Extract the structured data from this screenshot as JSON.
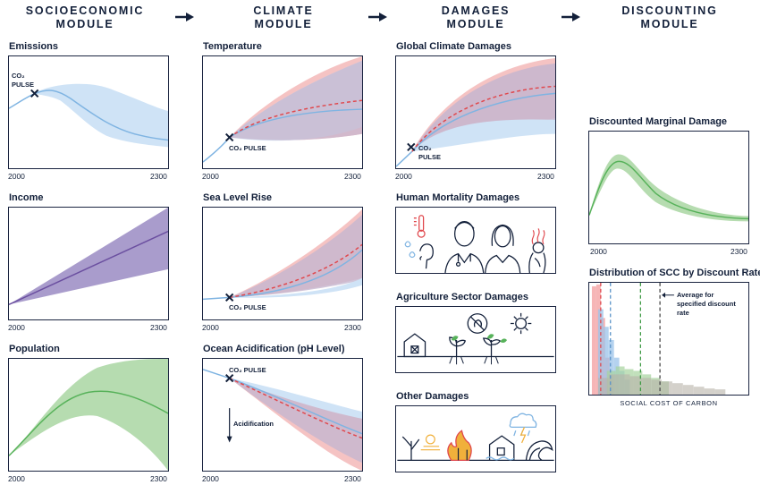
{
  "modules": {
    "socioeconomic": [
      "SOCIOECONOMIC",
      "MODULE"
    ],
    "climate": [
      "CLIMATE",
      "MODULE"
    ],
    "damages": [
      "DAMAGES",
      "MODULE"
    ],
    "discounting": [
      "DISCOUNTING",
      "MODULE"
    ]
  },
  "socio": {
    "emissions": {
      "title": "Emissions",
      "x_start": "2000",
      "x_end": "2300",
      "annotation": [
        "CO₂",
        "PULSE"
      ]
    },
    "income": {
      "title": "Income",
      "x_start": "2000",
      "x_end": "2300"
    },
    "population": {
      "title": "Population",
      "x_start": "2000",
      "x_end": "2300"
    }
  },
  "climate": {
    "temperature": {
      "title": "Temperature",
      "x_start": "2000",
      "x_end": "2300",
      "annotation": "CO₂ PULSE"
    },
    "sea_level": {
      "title": "Sea Level Rise",
      "x_start": "2000",
      "x_end": "2300",
      "annotation": "CO₂ PULSE"
    },
    "ocean": {
      "title": "Ocean Acidification (pH Level)",
      "x_start": "2000",
      "x_end": "2300",
      "annotation": "CO₂ PULSE",
      "arrow_label": "Acidification"
    }
  },
  "damages": {
    "global": {
      "title": "Global Climate Damages",
      "x_start": "2000",
      "x_end": "2300",
      "annotation": [
        "CO₂",
        "PULSE"
      ]
    },
    "mortality": {
      "title": "Human Mortality Damages"
    },
    "agriculture": {
      "title": "Agriculture Sector Damages"
    },
    "other": {
      "title": "Other Damages"
    }
  },
  "discounting": {
    "marginal": {
      "title": "Discounted Marginal Damage",
      "x_start": "2000",
      "x_end": "2300"
    },
    "distribution": {
      "title": "Distribution of SCC by Discount Rate",
      "annotation": [
        "Average for",
        "specified discount",
        "rate"
      ],
      "xlabel": "SOCIAL COST OF CARBON"
    }
  },
  "colors": {
    "navy": "#1a2440",
    "blue_band": "#cfe3f6",
    "blue_line": "#7fb4e2",
    "red_band": "#f5c3c3",
    "red_dash": "#e0474c",
    "purple_band": "#a99ccc",
    "purple_line": "#6b4fa0",
    "green_band": "#b6dcb0",
    "green_line": "#57b25a"
  }
}
